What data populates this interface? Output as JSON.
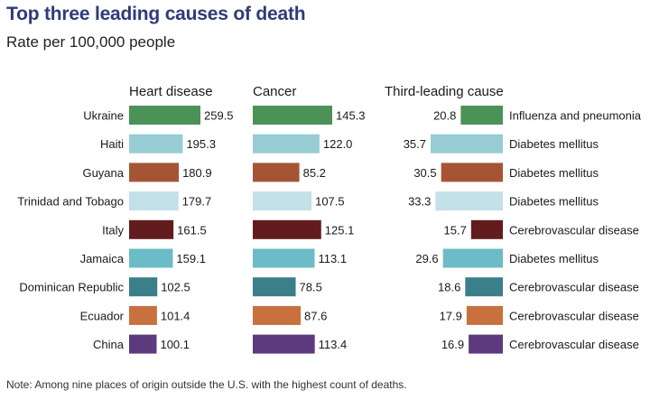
{
  "chart_data": {
    "type": "bar",
    "title": "Top three leading causes of death",
    "subtitle": "Rate per 100,000 people",
    "note": "Note: Among nine places of origin outside the U.S. with the highest count of deaths.",
    "column_headers": {
      "heart": "Heart disease",
      "cancer": "Cancer",
      "third": "Third-leading cause"
    },
    "categories": [
      "Ukraine",
      "Haiti",
      "Guyana",
      "Trinidad and Tobago",
      "Italy",
      "Jamaica",
      "Dominican Republic",
      "Ecuador",
      "China"
    ],
    "colors": [
      "#4c9158",
      "#98ccd4",
      "#a55535",
      "#c4e0e8",
      "#621c1e",
      "#6bbcc6",
      "#3b7f8a",
      "#c8703e",
      "#5d3a7e"
    ],
    "series": [
      {
        "name": "Heart disease",
        "values": [
          259.5,
          195.3,
          180.9,
          179.7,
          161.5,
          159.1,
          102.5,
          101.4,
          100.1
        ]
      },
      {
        "name": "Cancer",
        "values": [
          145.3,
          122.0,
          85.2,
          107.5,
          125.1,
          113.1,
          78.5,
          87.6,
          113.4
        ]
      },
      {
        "name": "Third-leading cause",
        "values": [
          20.8,
          35.7,
          30.5,
          33.3,
          15.7,
          29.6,
          18.6,
          17.9,
          16.9
        ]
      }
    ],
    "third_cause_labels": [
      "Influenza and pneumonia",
      "Diabetes mellitus",
      "Diabetes mellitus",
      "Diabetes mellitus",
      "Cerebrovascular disease",
      "Diabetes mellitus",
      "Cerebrovascular disease",
      "Cerebrovascular disease",
      "Cerebrovascular disease"
    ]
  }
}
